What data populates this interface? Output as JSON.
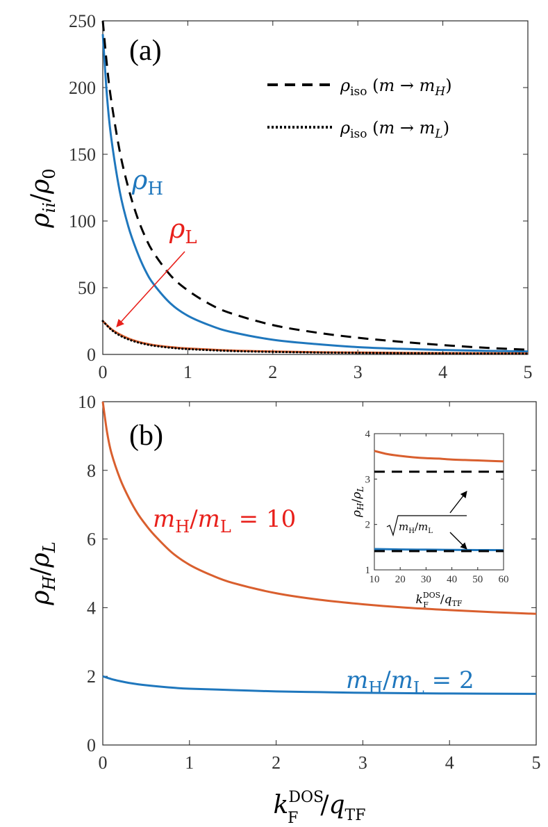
{
  "colors": {
    "blue": "#1f77bd",
    "orange": "#d95f2e",
    "red": "#e8201b",
    "black": "#000000"
  },
  "chart_data": [
    {
      "id": "a",
      "type": "line",
      "panel_label": "(a)",
      "ylabel": "ρ_ii/ρ_0",
      "xlim": [
        0,
        5
      ],
      "ylim": [
        0,
        250
      ],
      "xticks": [
        "0",
        "1",
        "2",
        "3",
        "4",
        "5"
      ],
      "yticks": [
        "0",
        "50",
        "100",
        "150",
        "200",
        "250"
      ],
      "grid": false,
      "legend": {
        "position": "top-right",
        "entries": [
          {
            "text": "ρ_iso (m → m_H)",
            "style": "dashed"
          },
          {
            "text": "ρ_iso (m → m_L)",
            "style": "dotted"
          }
        ]
      },
      "annotations": [
        "ρ_H",
        "ρ_L"
      ],
      "series": [
        {
          "name": "ρ_H",
          "style": "solid",
          "color": "blue",
          "x": [
            0,
            0.05,
            0.1,
            0.2,
            0.3,
            0.4,
            0.5,
            0.6,
            0.8,
            1,
            1.25,
            1.5,
            2,
            2.5,
            3,
            3.5,
            4,
            4.5,
            5
          ],
          "y": [
            240,
            193,
            162,
            122,
            96,
            77.5,
            63,
            52.5,
            38,
            29,
            22,
            17,
            11,
            7.8,
            5.5,
            4.2,
            3.3,
            2.7,
            2.2
          ]
        },
        {
          "name": "ρ_iso (m → m_H)",
          "style": "dashed",
          "color": "black",
          "x": [
            0,
            0.05,
            0.1,
            0.2,
            0.3,
            0.4,
            0.5,
            0.6,
            0.8,
            1,
            1.25,
            1.5,
            2,
            2.5,
            3,
            3.5,
            4,
            4.5,
            5
          ],
          "y": [
            250,
            216,
            190,
            152,
            125,
            104,
            88,
            76,
            59,
            48,
            38,
            31,
            22,
            16.5,
            12.5,
            9.5,
            7,
            5,
            3.5
          ]
        },
        {
          "name": "ρ_L",
          "style": "solid",
          "color": "orange",
          "x": [
            0,
            0.1,
            0.2,
            0.3,
            0.4,
            0.5,
            0.6,
            0.8,
            1,
            1.5,
            2,
            2.5,
            3,
            4,
            5
          ],
          "y": [
            25,
            19,
            15,
            12,
            9.8,
            8.2,
            7,
            5.5,
            4.5,
            3,
            2.2,
            1.7,
            1.4,
            1,
            0.8
          ]
        },
        {
          "name": "ρ_iso (m → m_L)",
          "style": "dotted",
          "color": "black",
          "x": [
            0,
            0.1,
            0.2,
            0.3,
            0.4,
            0.5,
            0.6,
            0.8,
            1,
            1.5,
            2,
            2.5,
            3,
            4,
            5
          ],
          "y": [
            25,
            18.5,
            14.2,
            11.3,
            9.2,
            7.7,
            6.5,
            5,
            4,
            2.6,
            1.9,
            1.45,
            1.15,
            0.8,
            0.6
          ]
        }
      ]
    },
    {
      "id": "b",
      "type": "line",
      "panel_label": "(b)",
      "xlabel": "k_F^DOS/q_TF",
      "ylabel": "ρ_H/ρ_L",
      "xlim": [
        0,
        5
      ],
      "ylim": [
        0,
        10
      ],
      "xticks": [
        "0",
        "1",
        "2",
        "3",
        "4",
        "5"
      ],
      "yticks": [
        "0",
        "2",
        "4",
        "6",
        "8",
        "10"
      ],
      "grid": false,
      "series": [
        {
          "name": "m_H/m_L = 10",
          "color": "orange",
          "x": [
            0,
            0.05,
            0.1,
            0.2,
            0.3,
            0.4,
            0.5,
            0.6,
            0.8,
            1,
            1.25,
            1.5,
            2,
            2.5,
            3,
            3.5,
            4,
            4.5,
            5
          ],
          "y": [
            10,
            9.1,
            8.5,
            7.75,
            7.2,
            6.75,
            6.4,
            6.1,
            5.6,
            5.25,
            4.95,
            4.72,
            4.42,
            4.23,
            4.1,
            4.0,
            3.93,
            3.87,
            3.82
          ]
        },
        {
          "name": "m_H/m_L = 2",
          "color": "blue",
          "x": [
            0,
            0.1,
            0.2,
            0.3,
            0.5,
            0.75,
            1,
            1.5,
            2,
            2.5,
            3,
            4,
            5
          ],
          "y": [
            2.0,
            1.92,
            1.86,
            1.81,
            1.74,
            1.68,
            1.64,
            1.6,
            1.56,
            1.54,
            1.52,
            1.5,
            1.49
          ]
        }
      ],
      "annotations": [
        "m_H/m_L = 10",
        "m_H/m_L = 2"
      ],
      "inset": {
        "xlabel": "k_F^DOS/q_TF",
        "ylabel": "ρ_H/ρ_L",
        "xlim": [
          10,
          60
        ],
        "ylim": [
          1,
          4
        ],
        "xticks": [
          "10",
          "20",
          "30",
          "40",
          "50",
          "60"
        ],
        "yticks": [
          "1",
          "2",
          "3",
          "4"
        ],
        "annotation": "√(m_H/m_L)",
        "series": [
          {
            "name": "m_H/m_L = 10",
            "color": "orange",
            "x": [
              10,
              15,
              20,
              25,
              30,
              35,
              40,
              45,
              50,
              55,
              60
            ],
            "y": [
              3.62,
              3.55,
              3.51,
              3.48,
              3.46,
              3.45,
              3.43,
              3.42,
              3.41,
              3.4,
              3.39
            ]
          },
          {
            "name": "m_H/m_L = 2",
            "color": "blue",
            "x": [
              10,
              20,
              30,
              40,
              50,
              60
            ],
            "y": [
              1.46,
              1.45,
              1.445,
              1.44,
              1.437,
              1.435
            ]
          },
          {
            "name": "√10",
            "style": "dashed",
            "color": "black",
            "x": [
              10,
              60
            ],
            "y": [
              3.162,
              3.162
            ]
          },
          {
            "name": "√2",
            "style": "dashed",
            "color": "black",
            "x": [
              10,
              60
            ],
            "y": [
              1.414,
              1.414
            ]
          }
        ]
      }
    }
  ]
}
